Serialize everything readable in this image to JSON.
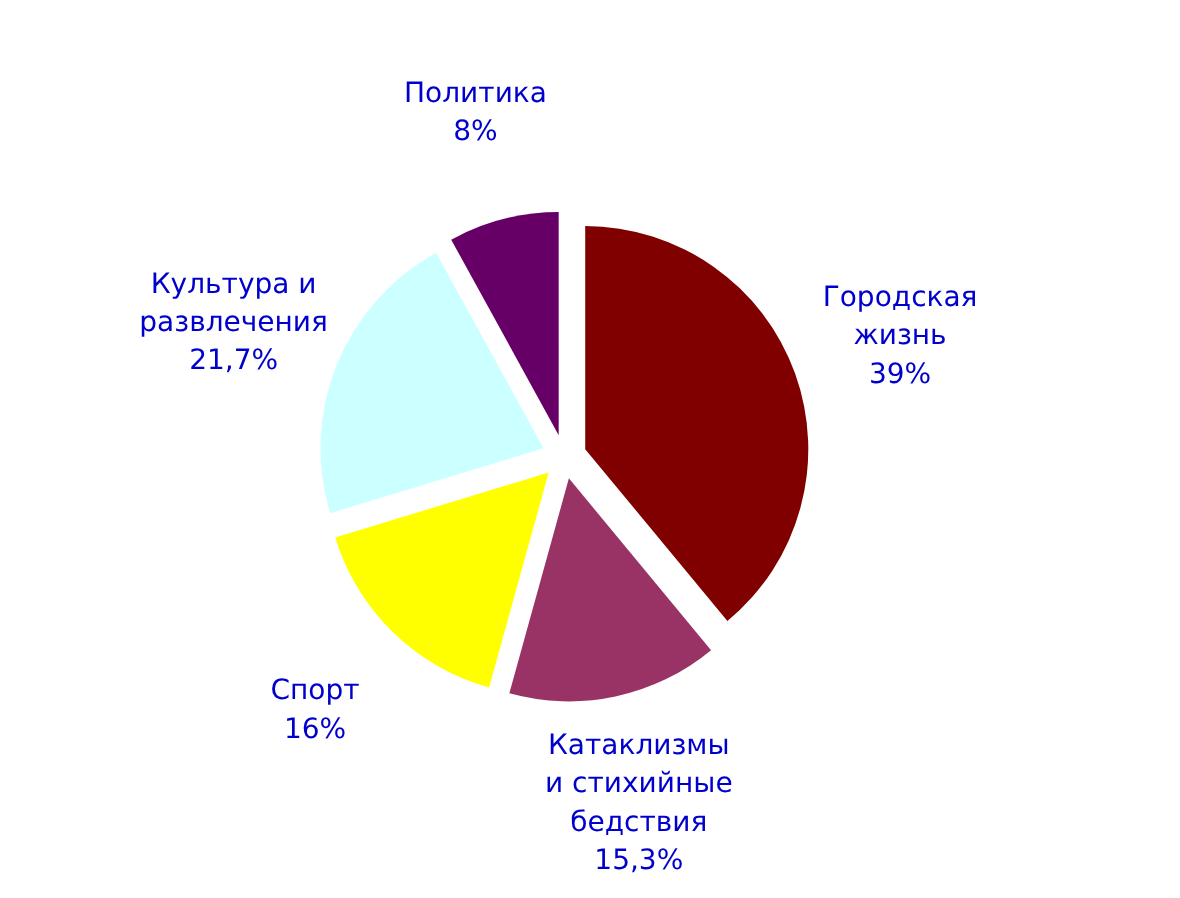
{
  "chart_data": {
    "type": "pie",
    "categories": [
      "Городская жизнь",
      "Катаклизмы и стихийные бедствия",
      "Спорт",
      "Культура и развлечения",
      "Политика"
    ],
    "values": [
      39,
      15.3,
      16,
      21.7,
      8
    ],
    "value_labels": [
      "39%",
      "15,3%",
      "16%",
      "21,7%",
      "8%"
    ],
    "colors": [
      "#800000",
      "#993366",
      "#ffff00",
      "#ccffff",
      "#660066"
    ]
  }
}
